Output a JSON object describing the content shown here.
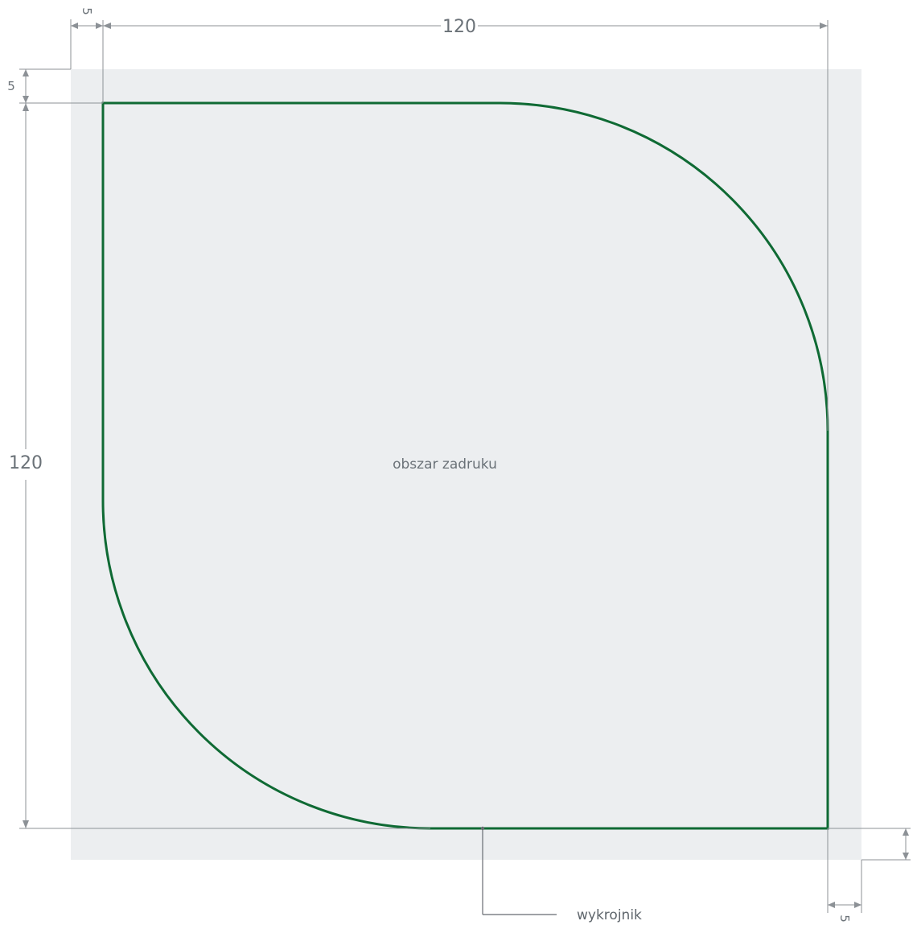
{
  "canvas": {
    "print_area_label": "obszar zadruku",
    "cut_line_label": "wykrojnik",
    "colors": {
      "print_area_fill": "#eceef0",
      "cut_line": "#0f6a34",
      "dimension_line": "#8c9196",
      "dimension_text": "#6b7278"
    }
  },
  "dimensions": {
    "top_width": "120",
    "left_height": "120",
    "top_left_margin_x": "5",
    "top_left_margin_y": "5",
    "bottom_right_margin_x": "5",
    "bottom_right_margin_y": ""
  }
}
